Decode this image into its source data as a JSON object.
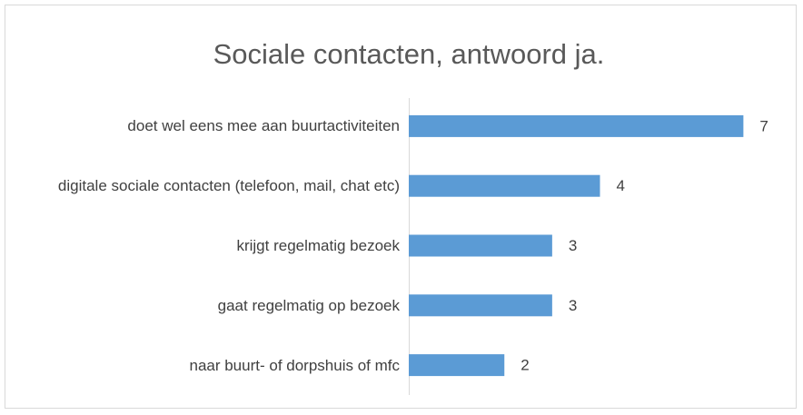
{
  "chart_data": {
    "type": "bar",
    "orientation": "horizontal",
    "title": "Sociale contacten, antwoord ja.",
    "categories": [
      "doet wel eens mee aan buurtactiviteiten",
      "digitale sociale contacten (telefoon, mail, chat etc)",
      "krijgt regelmatig bezoek",
      "gaat regelmatig op bezoek",
      "naar buurt- of dorpshuis of mfc"
    ],
    "values": [
      7,
      4,
      3,
      3,
      2
    ],
    "color": "#5b9bd5",
    "xlim": [
      0,
      8
    ]
  }
}
